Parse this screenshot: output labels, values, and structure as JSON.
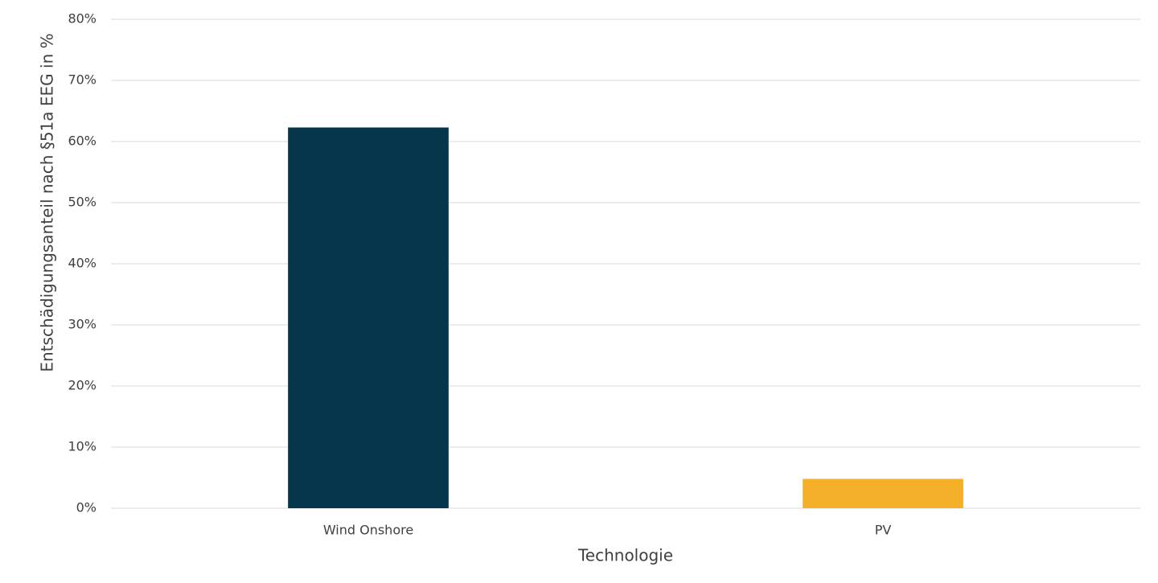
{
  "chart_data": {
    "type": "bar",
    "x_label": "Technologie",
    "y_label": "Entschädigungsanteil nach §51a EEG in %",
    "categories": [
      "Wind Onshore",
      "PV"
    ],
    "values": [
      62.3,
      4.8
    ],
    "colors": [
      "#05364b",
      "#f5b02a"
    ],
    "ylim": [
      0,
      80
    ],
    "yticks": [
      {
        "value": 0,
        "label": "0%"
      },
      {
        "value": 10,
        "label": "10%"
      },
      {
        "value": 20,
        "label": "20%"
      },
      {
        "value": 30,
        "label": "30%"
      },
      {
        "value": 40,
        "label": "40%"
      },
      {
        "value": 50,
        "label": "50%"
      },
      {
        "value": 60,
        "label": "60%"
      },
      {
        "value": 70,
        "label": "70%"
      },
      {
        "value": 80,
        "label": "80%"
      }
    ],
    "grid": true
  }
}
